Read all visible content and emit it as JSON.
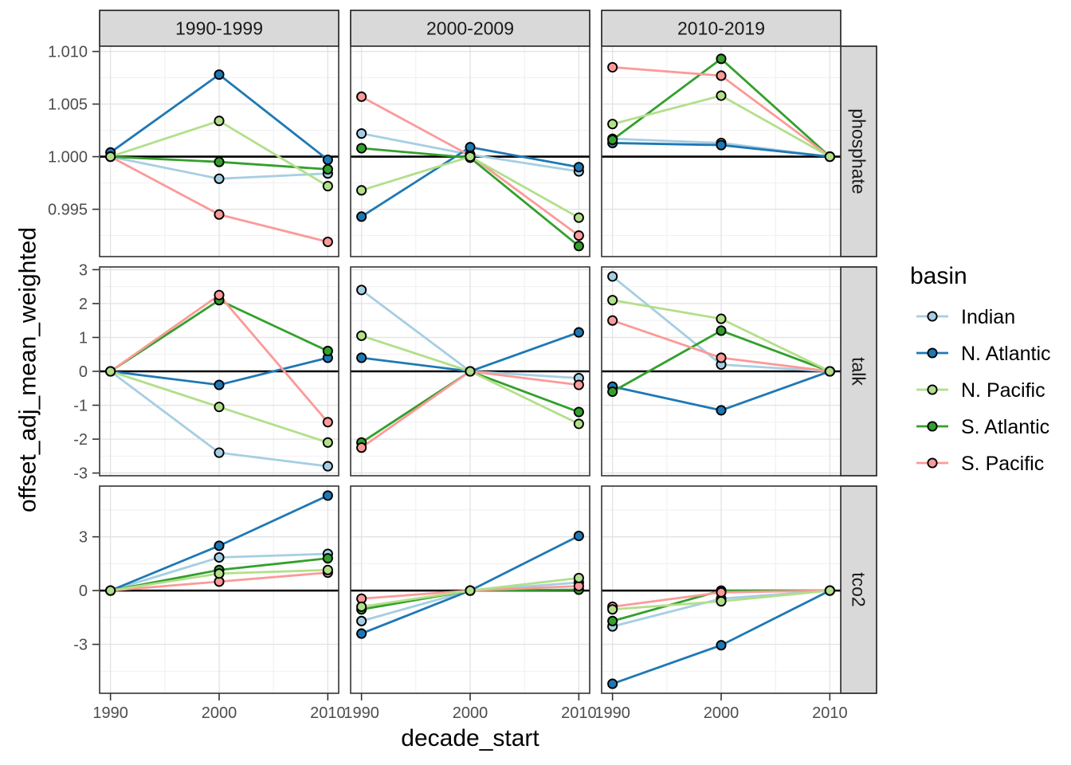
{
  "chart_data": {
    "type": "line",
    "title": "",
    "xlabel": "decade_start",
    "ylabel": "offset_adj_mean_weighted",
    "legend_title": "basin",
    "legend_position": "right",
    "grid": true,
    "x": [
      1990,
      2000,
      2010
    ],
    "x_tick_labels": [
      "1990",
      "2000",
      "2010"
    ],
    "xlim": [
      1989,
      2011
    ],
    "x_minor": [
      1995,
      2005
    ],
    "facet_cols": [
      "1990-1999",
      "2000-2009",
      "2010-2019"
    ],
    "facet_rows": [
      {
        "label": "phosphate",
        "ylim": [
          0.9905,
          1.0105
        ],
        "tick_values": [
          1.01,
          1.005,
          1.0,
          0.995
        ],
        "tick_labels": [
          "1.010",
          "1.005",
          "1.000",
          "0.995"
        ],
        "minor": [
          1.0075,
          1.0025,
          0.9975,
          0.9925
        ],
        "refline": 1.0
      },
      {
        "label": "talk",
        "ylim": [
          -3.08,
          3.08
        ],
        "tick_values": [
          3,
          2,
          1,
          0,
          -1,
          -2,
          -3
        ],
        "tick_labels": [
          "3",
          "2",
          "1",
          "0",
          "-1",
          "-2",
          "-3"
        ],
        "minor": [
          2.5,
          1.5,
          0.5,
          -0.5,
          -1.5,
          -2.5
        ],
        "refline": 0
      },
      {
        "label": "tco2",
        "ylim": [
          -5.73,
          5.83
        ],
        "tick_values": [
          3,
          0,
          -3
        ],
        "tick_labels": [
          "3",
          "0",
          "-3"
        ],
        "minor": [
          4.5,
          1.5,
          -1.5,
          -4.5
        ],
        "refline": 0
      }
    ],
    "series": [
      {
        "name": "Indian",
        "color": "#a6cee3"
      },
      {
        "name": "N. Atlantic",
        "color": "#1f78b4"
      },
      {
        "name": "N. Pacific",
        "color": "#b2df8a"
      },
      {
        "name": "S. Atlantic",
        "color": "#33a02c"
      },
      {
        "name": "S. Pacific",
        "color": "#fb9a99"
      }
    ],
    "draw_order": [
      "Indian",
      "N. Atlantic",
      "S. Atlantic",
      "S. Pacific",
      "N. Pacific"
    ],
    "values": {
      "phosphate": {
        "1990-1999": {
          "Indian": [
            1.0,
            0.9979,
            0.9984
          ],
          "N. Atlantic": [
            1.0004,
            1.0078,
            0.9997
          ],
          "N. Pacific": [
            1.0,
            1.0034,
            0.9972
          ],
          "S. Atlantic": [
            1.0,
            0.9995,
            0.9988
          ],
          "S. Pacific": [
            1.0,
            0.9945,
            0.9919
          ]
        },
        "2000-2009": {
          "Indian": [
            1.0022,
            1.0002,
            0.9986
          ],
          "N. Atlantic": [
            0.9943,
            1.0009,
            0.999
          ],
          "N. Pacific": [
            0.9968,
            1.0,
            0.9942
          ],
          "S. Atlantic": [
            1.0008,
            0.9999,
            0.9915
          ],
          "S. Pacific": [
            1.0057,
            1.0001,
            0.9925
          ]
        },
        "2010-2019": {
          "Indian": [
            1.0017,
            1.0013,
            1.0
          ],
          "N. Atlantic": [
            1.0013,
            1.0011,
            1.0
          ],
          "N. Pacific": [
            1.0031,
            1.0058,
            1.0
          ],
          "S. Atlantic": [
            1.0016,
            1.0093,
            1.0
          ],
          "S. Pacific": [
            1.0085,
            1.0077,
            1.0
          ]
        }
      },
      "talk": {
        "1990-1999": {
          "Indian": [
            0,
            -2.4,
            -2.8
          ],
          "N. Atlantic": [
            0,
            -0.4,
            0.4
          ],
          "N. Pacific": [
            0,
            -1.05,
            -2.1
          ],
          "S. Atlantic": [
            0,
            2.1,
            0.6
          ],
          "S. Pacific": [
            0,
            2.25,
            -1.5
          ]
        },
        "2000-2009": {
          "Indian": [
            2.4,
            0,
            -0.2
          ],
          "N. Atlantic": [
            0.4,
            0,
            1.15
          ],
          "N. Pacific": [
            1.05,
            0,
            -1.55
          ],
          "S. Atlantic": [
            -2.1,
            0,
            -1.2
          ],
          "S. Pacific": [
            -2.25,
            0,
            -0.4
          ]
        },
        "2010-2019": {
          "Indian": [
            2.8,
            0.2,
            0
          ],
          "N. Atlantic": [
            -0.45,
            -1.15,
            0
          ],
          "N. Pacific": [
            2.1,
            1.55,
            0
          ],
          "S. Atlantic": [
            -0.6,
            1.2,
            0
          ],
          "S. Pacific": [
            1.5,
            0.4,
            0
          ]
        }
      },
      "tco2": {
        "1990-1999": {
          "Indian": [
            0,
            1.85,
            2.05
          ],
          "N. Atlantic": [
            0,
            2.5,
            5.3
          ],
          "N. Pacific": [
            0,
            0.95,
            1.15
          ],
          "S. Atlantic": [
            0,
            1.15,
            1.8
          ],
          "S. Pacific": [
            0,
            0.5,
            1.0
          ]
        },
        "2000-2009": {
          "Indian": [
            -1.7,
            0,
            0.45
          ],
          "N. Atlantic": [
            -2.4,
            0,
            3.05
          ],
          "N. Pacific": [
            -0.9,
            0,
            0.7
          ],
          "S. Atlantic": [
            -1.05,
            0,
            0.05
          ],
          "S. Pacific": [
            -0.45,
            0,
            0.25
          ]
        },
        "2010-2019": {
          "Indian": [
            -2.0,
            -0.45,
            0
          ],
          "N. Atlantic": [
            -5.2,
            -3.05,
            0
          ],
          "N. Pacific": [
            -1.05,
            -0.6,
            0
          ],
          "S. Atlantic": [
            -1.7,
            0.0,
            0
          ],
          "S. Pacific": [
            -0.9,
            -0.1,
            0
          ]
        }
      }
    },
    "theme": {
      "strip_fill": "#d9d9d9",
      "strip_border": "#1a1a1a",
      "panel_fill": "#ffffff",
      "panel_border": "#333333",
      "grid_major": "#e3e3e3",
      "grid_minor": "#eeeeee",
      "refline_color": "#000000",
      "tick_color": "#333333",
      "tick_text_color": "#4d4d4d",
      "title_text_color": "#000000",
      "strip_text_color": "#1a1a1a"
    }
  }
}
